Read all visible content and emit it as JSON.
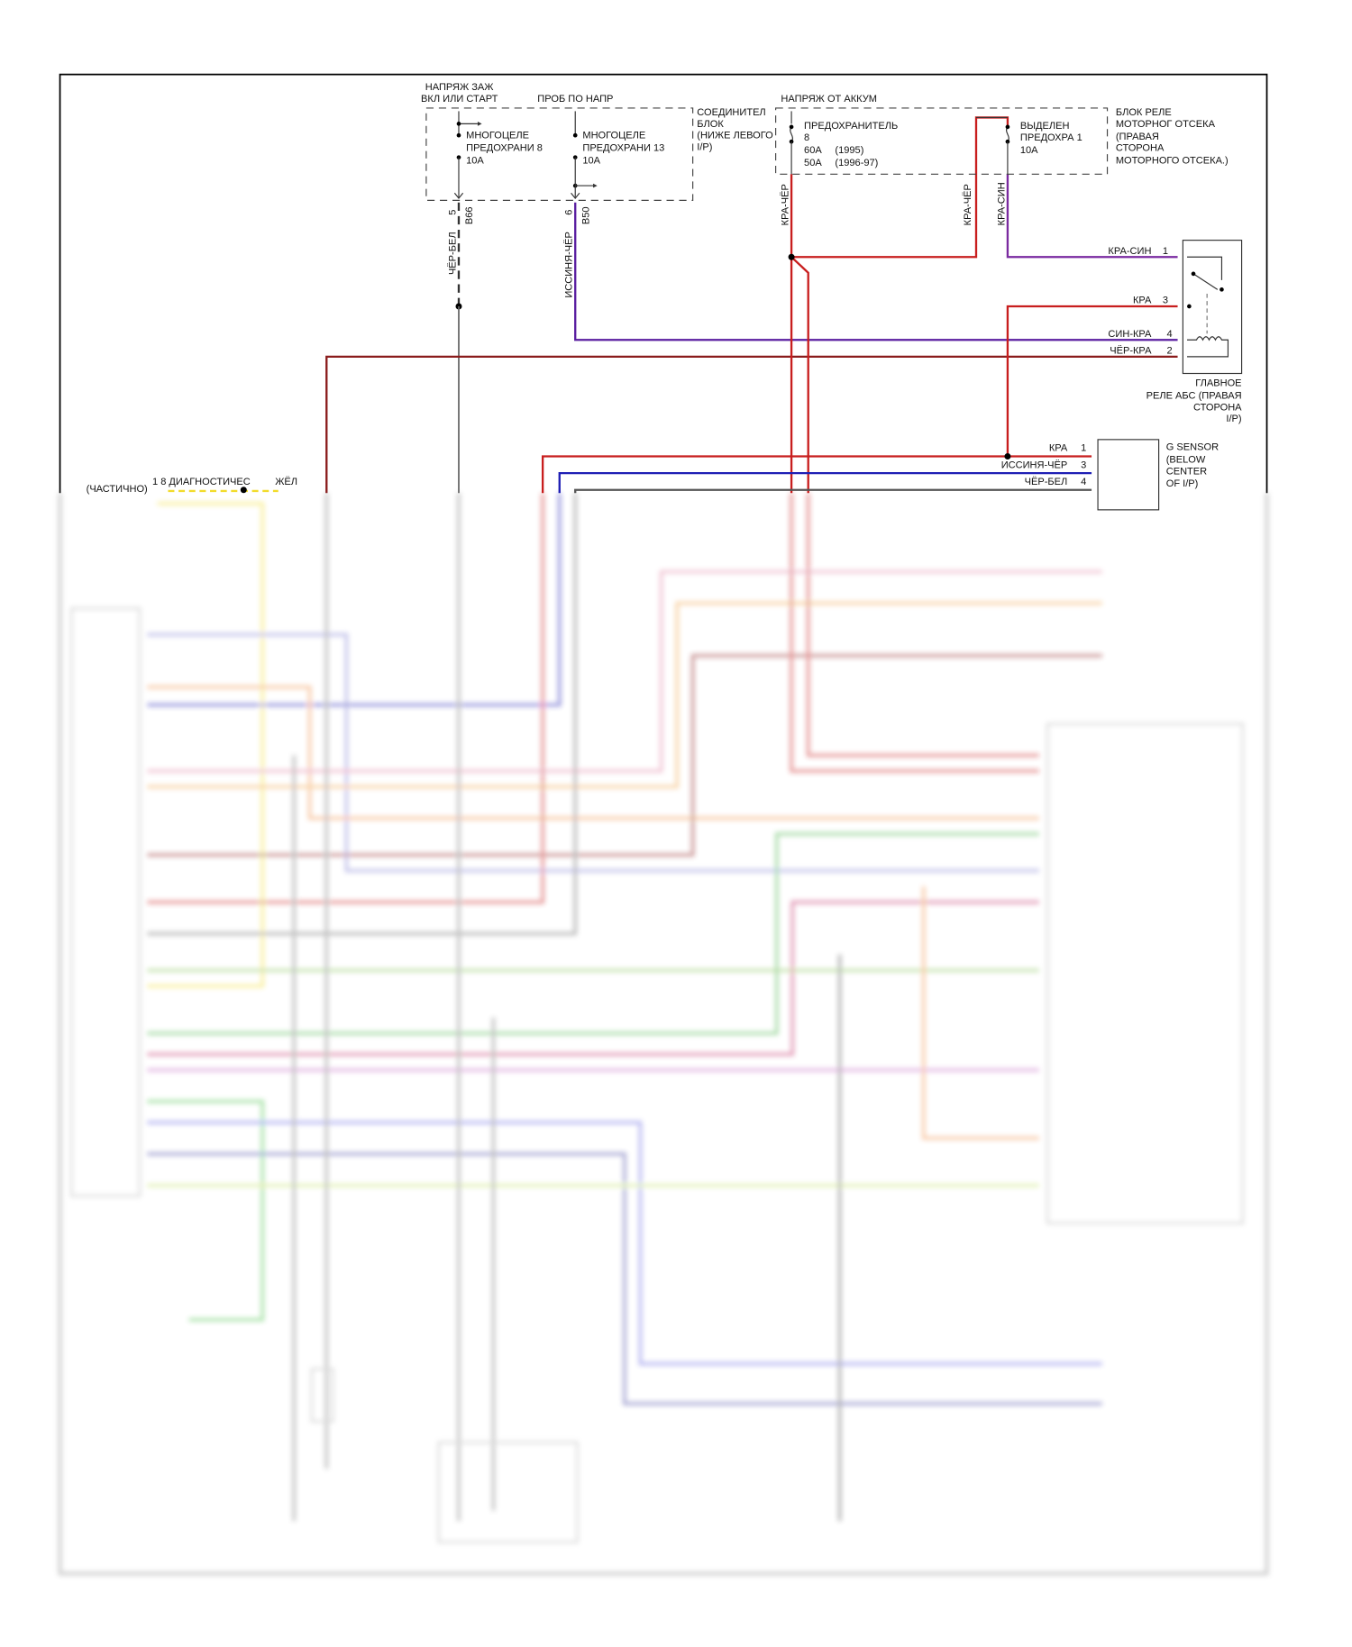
{
  "colors": {
    "red": "#c81e1e",
    "dark_red": "#8a1c1c",
    "purple": "#5a1ea0",
    "blue": "#1e1eb4",
    "gray": "#555555",
    "yellow": "#f2dc2a"
  },
  "junction_block": {
    "power_label_1": "НАПРЯЖ ЗАЖ",
    "power_label_2": "ВКЛ ИЛИ СТАРТ",
    "test_label": "ПРОБ ПО НАПР",
    "fuse8": {
      "l1": "МНОГОЦЕЛЕ",
      "l2": "ПРЕДОХРАНИ 8",
      "l3": "10A"
    },
    "fuse13": {
      "l1": "МНОГОЦЕЛЕ",
      "l2": "ПРЕДОХРАНИ 13",
      "l3": "10A"
    },
    "name": [
      "СОЕДИНИТЕЛ",
      "БЛОК",
      "(НИЖЕ ЛЕВОГО",
      "I/P)"
    ],
    "conn_b66_pin": "5",
    "conn_b66": "B66",
    "conn_b50_pin": "6",
    "conn_b50": "B50",
    "wire_b66": "ЧЁР-БЕЛ",
    "wire_b50": "ИССИНЯ-ЧЁР"
  },
  "relay_block": {
    "power_label": "НАПРЯЖ ОТ АККУМ",
    "fuse8": {
      "l1": "ПРЕДОХРАНИТЕЛЬ",
      "l2": "8",
      "l3": "60A     (1995)",
      "l4": "50A     (1996-97)"
    },
    "fuse1": {
      "l1": "ВЫДЕЛЕН",
      "l2": "ПРЕДОХРА 1",
      "l3": "10A"
    },
    "name": [
      "БЛОК РЕЛЕ",
      "МОТОРНОГ ОТСЕКА",
      "(ПРАВАЯ",
      "СТОРОНА",
      "МОТОРНОГО ОТСЕКА.)"
    ],
    "wire_fuse8": "КРА-ЧЁР",
    "wire_jumper": "КРА-ЧЁР",
    "wire_fuse1": "КРА-СИН"
  },
  "abs_relay": {
    "name": [
      "ГЛАВНОЕ",
      "РЕЛЕ АБС (ПРАВАЯ",
      "СТОРОНА",
      "I/P)"
    ],
    "pins": [
      {
        "wire": "КРА-СИН",
        "pin": "1"
      },
      {
        "wire": "КРА",
        "pin": "3"
      },
      {
        "wire": "СИН-КРА",
        "pin": "4"
      },
      {
        "wire": "ЧЁР-КРА",
        "pin": "2"
      }
    ]
  },
  "g_sensor": {
    "name": [
      "G SENSOR",
      "(BELOW",
      "CENTER",
      "OF I/P)"
    ],
    "pins": [
      {
        "wire": "КРА",
        "pin": "1"
      },
      {
        "wire": "ИССИНЯ-ЧЁР",
        "pin": "3"
      },
      {
        "wire": "ЧЁР-БЕЛ",
        "pin": "4"
      }
    ]
  },
  "diag_connector": {
    "partial": "(ЧАСТИЧНО)",
    "label": "1 8 ДИАГНОСТИЧЕС",
    "wire": "ЖЁЛ"
  }
}
